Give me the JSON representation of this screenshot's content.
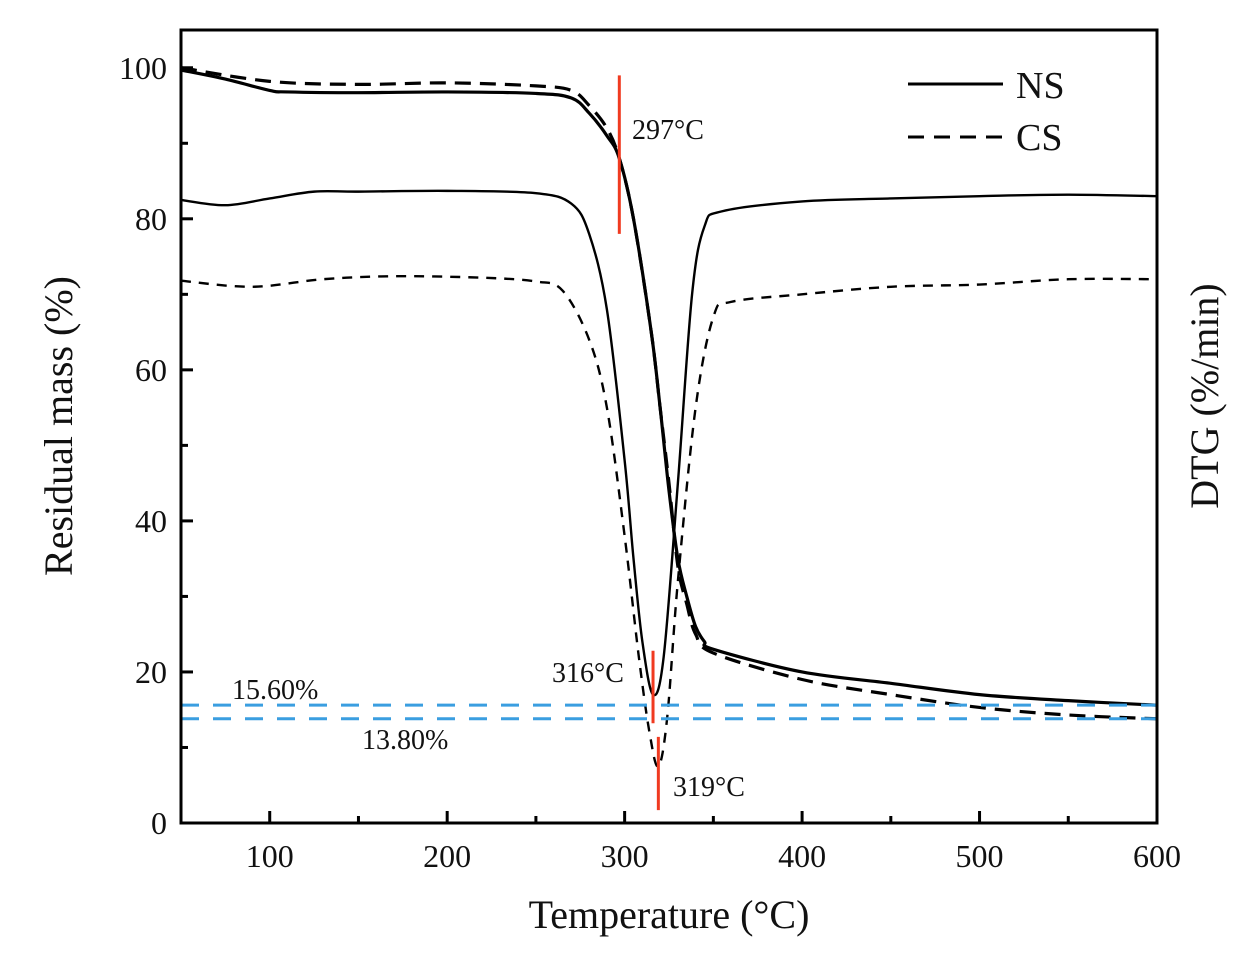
{
  "chart_data": {
    "type": "line",
    "xlabel": "Temperature (°C)",
    "ylabel": "Residual mass (%)",
    "y2label": "DTG (%/min)",
    "xlim": [
      50,
      600
    ],
    "ylim": [
      0,
      105
    ],
    "xticks": [
      100,
      200,
      300,
      400,
      500,
      600
    ],
    "yticks": [
      0,
      20,
      40,
      60,
      80,
      100
    ],
    "grid": false,
    "legend": {
      "position": "top-right",
      "entries": [
        {
          "label": "NS",
          "style": "solid"
        },
        {
          "label": "CS",
          "style": "dashed"
        }
      ]
    },
    "series": [
      {
        "name": "NS",
        "kind": "TG",
        "style": "solid",
        "x": [
          50,
          75,
          100,
          110,
          150,
          200,
          250,
          270,
          280,
          290,
          297,
          305,
          315,
          320,
          325,
          330,
          335,
          340,
          345,
          350,
          400,
          450,
          500,
          550,
          600
        ],
        "y": [
          99.7,
          98.5,
          97,
          96.8,
          96.7,
          96.8,
          96.6,
          96,
          94,
          91,
          88,
          80,
          65,
          55,
          44,
          35,
          30,
          26,
          24,
          23,
          20,
          18.5,
          17,
          16.2,
          15.6
        ]
      },
      {
        "name": "CS",
        "kind": "TG",
        "style": "dashed",
        "x": [
          50,
          100,
          150,
          200,
          250,
          270,
          280,
          290,
          297,
          305,
          315,
          320,
          325,
          330,
          335,
          340,
          350,
          400,
          450,
          500,
          550,
          600
        ],
        "y": [
          100,
          98.2,
          97.8,
          98,
          97.6,
          97,
          95,
          92,
          88,
          80,
          65,
          55,
          45,
          34,
          29,
          25,
          22.5,
          19,
          17,
          15.3,
          14.3,
          13.8
        ]
      },
      {
        "name": "NS",
        "kind": "DTG",
        "style": "solid",
        "x": [
          50,
          75,
          100,
          125,
          150,
          200,
          250,
          270,
          280,
          290,
          300,
          305,
          310,
          316,
          322,
          330,
          338,
          345,
          355,
          400,
          450,
          500,
          550,
          600
        ],
        "y": [
          82.5,
          81.8,
          82.7,
          83.6,
          83.6,
          83.7,
          83.4,
          82,
          78,
          68,
          48,
          35,
          24,
          17,
          22,
          45,
          70,
          79,
          81,
          82.3,
          82.7,
          83,
          83.2,
          83
        ]
      },
      {
        "name": "CS",
        "kind": "DTG",
        "style": "dashed",
        "x": [
          50,
          90,
          130,
          170,
          220,
          250,
          265,
          280,
          290,
          300,
          308,
          314,
          319,
          324,
          330,
          340,
          350,
          360,
          400,
          450,
          500,
          550,
          600
        ],
        "y": [
          71.8,
          71,
          72,
          72.4,
          72.2,
          71.7,
          70.5,
          64,
          55,
          38,
          22,
          12,
          7.5,
          14,
          32,
          55,
          67,
          69,
          70,
          71,
          71.3,
          72,
          72
        ]
      }
    ],
    "annotations": [
      {
        "text": "297°C",
        "marker_x": 297,
        "marker_y": [
          78,
          99
        ]
      },
      {
        "text": "316°C",
        "marker_x": 316,
        "marker_y": [
          13.2,
          22.8
        ]
      },
      {
        "text": "319°C",
        "marker_x": 319,
        "marker_y": [
          1.7,
          11.4
        ]
      },
      {
        "text": "15.60%",
        "hline_y": 15.6
      },
      {
        "text": "13.80%",
        "hline_y": 13.8
      }
    ],
    "colors": {
      "curves": "#000000",
      "markers": "#f03a20",
      "hlines": "#3a9ee0"
    }
  }
}
